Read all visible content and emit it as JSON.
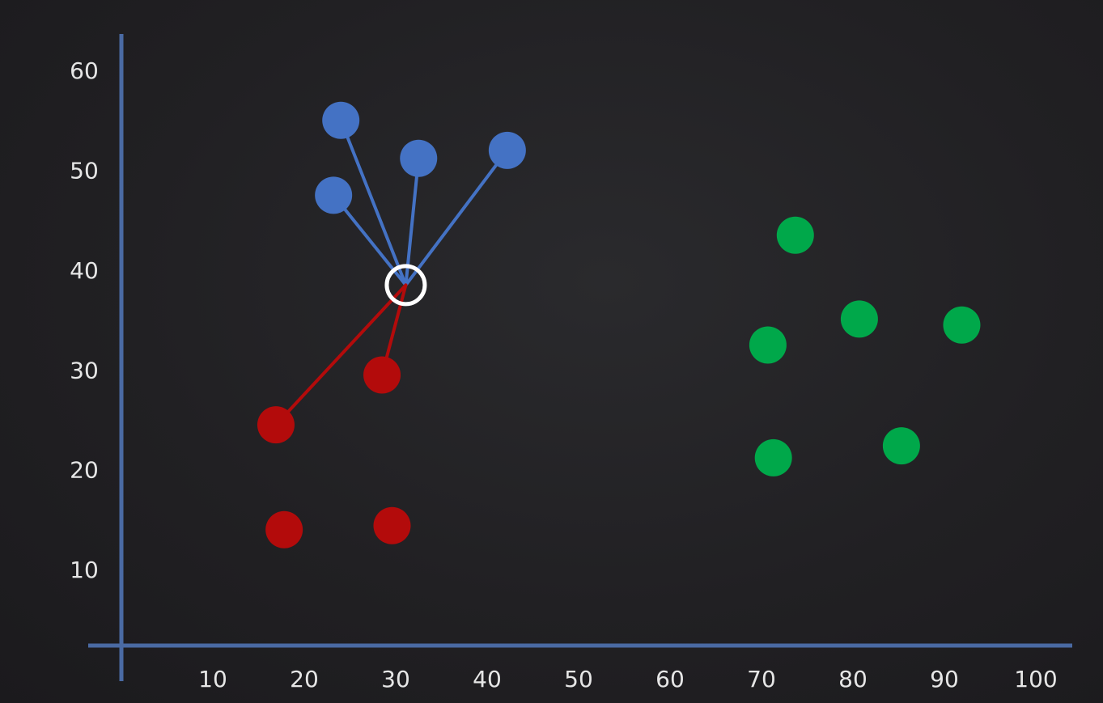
{
  "chart_data": {
    "type": "scatter",
    "title": "",
    "xlabel": "",
    "ylabel": "",
    "xlim": [
      0,
      105
    ],
    "ylim": [
      0,
      62
    ],
    "x_ticks": [
      10,
      20,
      30,
      40,
      50,
      60,
      70,
      80,
      90,
      100
    ],
    "y_ticks": [
      10,
      20,
      30,
      40,
      50,
      60
    ],
    "x_tick_labels": [
      "10",
      "20",
      "30",
      "40",
      "50",
      "60",
      "70",
      "80",
      "90",
      "100"
    ],
    "y_tick_labels": [
      "10",
      "20",
      "30",
      "40",
      "50",
      "60"
    ],
    "grid": false,
    "legend": false,
    "axis_color": "#4a6aa3",
    "series": [
      {
        "color": "#4472c4",
        "points": [
          [
            24,
            55
          ],
          [
            23.2,
            47.5
          ],
          [
            32.5,
            51.2
          ],
          [
            42.2,
            52
          ]
        ]
      },
      {
        "color": "#b30b0b",
        "points": [
          [
            16.9,
            24.5
          ],
          [
            28.5,
            29.5
          ],
          [
            17.8,
            14
          ],
          [
            29.6,
            14.4
          ]
        ]
      },
      {
        "color": "#00a84a",
        "points": [
          [
            73.7,
            43.5
          ],
          [
            70.7,
            32.5
          ],
          [
            80.7,
            35.1
          ],
          [
            91.9,
            34.5
          ],
          [
            71.3,
            21.2
          ],
          [
            85.3,
            22.4
          ]
        ]
      }
    ],
    "query_point": {
      "x": 31.1,
      "y": 38.5,
      "color": "#ffffff"
    },
    "neighbor_links": [
      {
        "from": [
          24,
          55
        ],
        "color": "#4472c4"
      },
      {
        "from": [
          23.2,
          47.5
        ],
        "color": "#4472c4"
      },
      {
        "from": [
          32.5,
          51.2
        ],
        "color": "#4472c4"
      },
      {
        "from": [
          42.2,
          52
        ],
        "color": "#4472c4"
      },
      {
        "from": [
          16.9,
          24.5
        ],
        "color": "#b30b0b"
      },
      {
        "from": [
          28.5,
          29.5
        ],
        "color": "#b30b0b"
      }
    ]
  }
}
